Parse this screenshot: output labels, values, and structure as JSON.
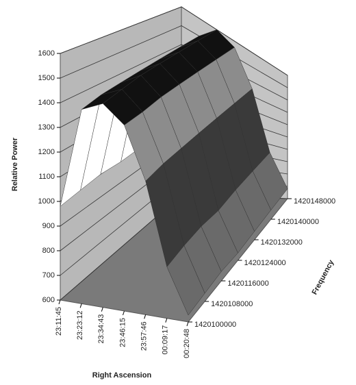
{
  "chart_data": {
    "type": "surface3d",
    "x_label": "Right Ascension",
    "y_label": "Frequency",
    "z_label": "Relative Power",
    "x": [
      "23:11:45",
      "23:23:12",
      "23:34:43",
      "23:46:15",
      "23:57:46",
      "00:09:17",
      "00:20:48"
    ],
    "y": [
      1420100000,
      1420108000,
      1420116000,
      1420124000,
      1420132000,
      1420140000,
      1420148000
    ],
    "z": [
      [
        980,
        1430,
        1520,
        1490,
        1280,
        880,
        640
      ],
      [
        990,
        1450,
        1540,
        1500,
        1300,
        900,
        650
      ],
      [
        1000,
        1460,
        1560,
        1520,
        1310,
        910,
        660
      ],
      [
        995,
        1470,
        1570,
        1530,
        1320,
        900,
        650
      ],
      [
        1000,
        1480,
        1580,
        1540,
        1330,
        920,
        660
      ],
      [
        990,
        1490,
        1590,
        1550,
        1340,
        930,
        670
      ],
      [
        1000,
        1500,
        1600,
        1560,
        1350,
        940,
        680
      ]
    ],
    "zlim": [
      600,
      1600
    ],
    "zticks": [
      600,
      700,
      800,
      900,
      1000,
      1100,
      1200,
      1300,
      1400,
      1500,
      1600
    ],
    "grid": true
  }
}
